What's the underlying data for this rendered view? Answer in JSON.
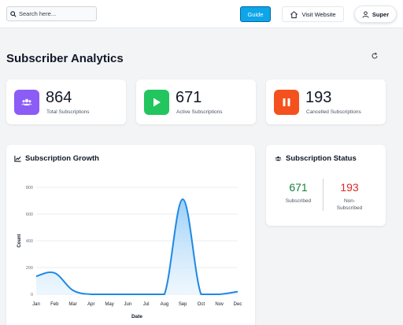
{
  "header": {
    "search_placeholder": "Search here...",
    "guide_label": "Guide",
    "visit_label": "Visit Website",
    "user_label": "Super"
  },
  "page_title": "Subscriber Analytics",
  "stats": [
    {
      "value": "864",
      "label": "Total Subscriptions",
      "color": "#8b5cf6",
      "icon": "users-icon"
    },
    {
      "value": "671",
      "label": "Active Subscriptions",
      "color": "#22c55e",
      "icon": "play-icon"
    },
    {
      "value": "193",
      "label": "Cancelled Subscriptions",
      "color": "#f97316",
      "icon": "pause-icon"
    }
  ],
  "growth": {
    "title": "Subscription Growth"
  },
  "status": {
    "title": "Subscription Status",
    "subscribed_value": "671",
    "subscribed_label": "Subscribed",
    "subscribed_color": "#15803d",
    "non_value": "193",
    "non_label_1": "Non-",
    "non_label_2": "Subscribed",
    "non_color": "#dc2626"
  },
  "chart_data": {
    "type": "area",
    "categories": [
      "Jan",
      "Feb",
      "Mar",
      "Apr",
      "May",
      "Jun",
      "Jul",
      "Aug",
      "Sep",
      "Oct",
      "Nov",
      "Dec"
    ],
    "values": [
      135,
      160,
      30,
      0,
      0,
      0,
      0,
      0,
      710,
      0,
      0,
      20
    ],
    "xlabel": "Date",
    "ylabel": "Count",
    "ylim": [
      0,
      800
    ],
    "yticks": [
      0,
      200,
      400,
      600,
      800
    ],
    "line_color": "#1e88e5",
    "fill_color": "#bfdbfe",
    "grid": true
  }
}
